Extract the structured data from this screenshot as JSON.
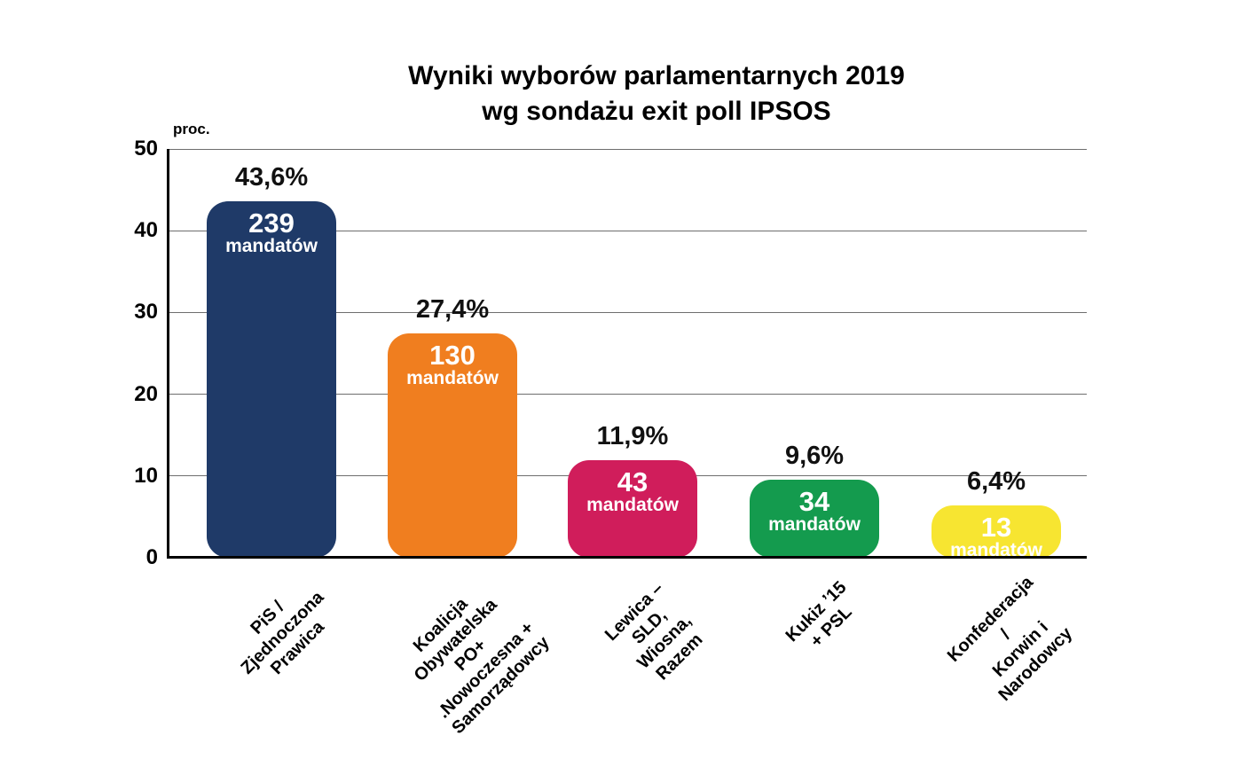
{
  "title": {
    "line1": "Wyniki wyborów parlamentarnych 2019",
    "line2": "wg sondażu exit poll IPSOS"
  },
  "chart_data": {
    "type": "bar",
    "title": "Wyniki wyborów parlamentarnych 2019 wg sondażu exit poll IPSOS",
    "xlabel": "",
    "ylabel": "proc.",
    "ylim": [
      0,
      50
    ],
    "yticks": [
      0,
      10,
      20,
      30,
      40,
      50
    ],
    "grid": true,
    "legend_position": "none",
    "categories": [
      "PiS / Zjednoczona Prawica",
      "Koalicja Obywatelska PO+ .Nowoczesna + Samorządowcy",
      "Lewica – SLD, Wiosna, Razem",
      "Kukiz ’15 + PSL",
      "Konfederacja / Korwin i Narodowcy"
    ],
    "values": [
      43.6,
      27.4,
      11.9,
      9.6,
      6.4
    ],
    "seats": [
      239,
      130,
      43,
      34,
      13
    ],
    "bars": [
      {
        "category": "PiS / Zjednoczona\nPrawica",
        "value": 43.6,
        "percent_label": "43,6%",
        "seats": "239",
        "seats_word": "mandatów",
        "color": "#1F3A68"
      },
      {
        "category": "Koalicja Obywatelska\nPO+ .Nowoczesna +\nSamorządowcy",
        "value": 27.4,
        "percent_label": "27,4%",
        "seats": "130",
        "seats_word": "mandatów",
        "color": "#F07E1F"
      },
      {
        "category": "Lewica – SLD,\nWiosna, Razem",
        "value": 11.9,
        "percent_label": "11,9%",
        "seats": "43",
        "seats_word": "mandatów",
        "color": "#D01D5B"
      },
      {
        "category": "Kukiz ’15 + PSL",
        "value": 9.6,
        "percent_label": "9,6%",
        "seats": "34",
        "seats_word": "mandatów",
        "color": "#149B4E"
      },
      {
        "category": "Konfederacja /\nKorwin i Narodowcy",
        "value": 6.4,
        "percent_label": "6,4%",
        "seats": "13",
        "seats_word": "mandatów",
        "color": "#F7E531"
      }
    ]
  }
}
